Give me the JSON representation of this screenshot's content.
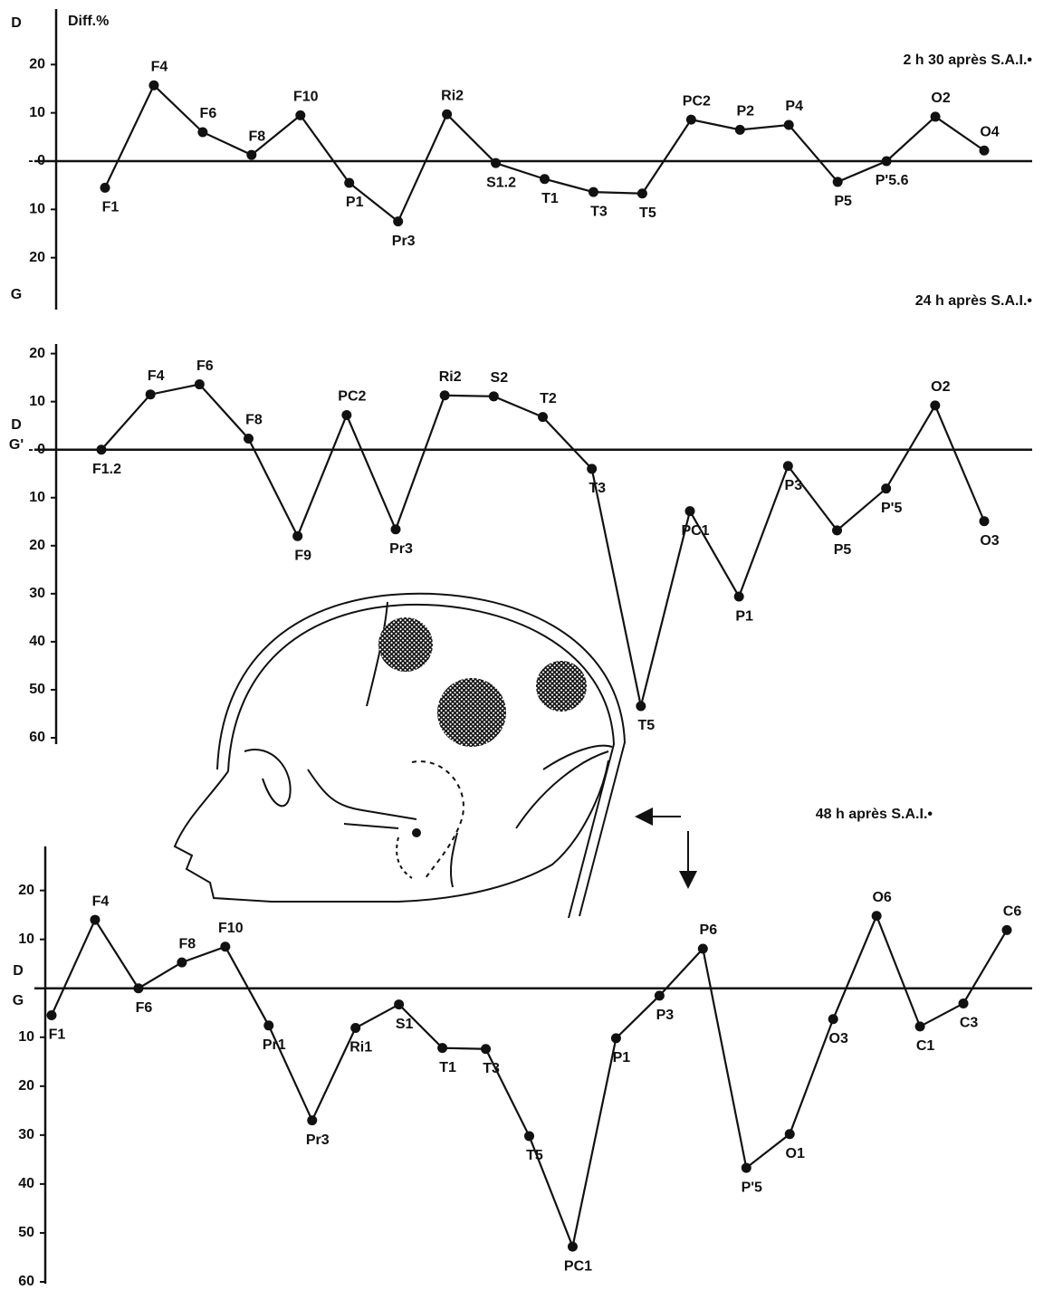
{
  "chart_data": [
    {
      "type": "line",
      "title": "2  h 30 après S.A.I.•",
      "y_label": "Diff.%",
      "upper_label": "D",
      "lower_label": "G",
      "categories": [
        "F1",
        "F4",
        "F6",
        "F8",
        "F10",
        "P1",
        "Pr3",
        "Ri2",
        "S1.2",
        "T1",
        "T3",
        "T5",
        "PC2",
        "P2",
        "P4",
        "P5",
        "P'5.6",
        "O2",
        "O4"
      ],
      "values": [
        -5.5,
        15.7,
        6,
        1.3,
        9.5,
        -4.5,
        -12.5,
        9.7,
        -0.4,
        -3.7,
        -6.4,
        -6.7,
        8.6,
        6.5,
        7.5,
        -4.3,
        0,
        9.2,
        2.2
      ],
      "ylim": [
        -30,
        30
      ],
      "yticks": [
        20,
        10,
        {
          "value": 0,
          "label": "- 0"
        },
        {
          "value": -10,
          "label": "10"
        },
        {
          "value": -20,
          "label": "20"
        }
      ],
      "color": "#111111"
    },
    {
      "type": "line",
      "title": "24 h après S.A.I.•",
      "upper_label": "D",
      "lower_label": "G'",
      "categories": [
        "F1.2",
        "F4",
        "F6",
        "F8",
        "F9",
        "PC2",
        "Pr3",
        "Ri2",
        "S2",
        "T2",
        "T3",
        "T5",
        "PC1",
        "P1",
        "P3",
        "P5",
        "P'5",
        "O2",
        "O3"
      ],
      "values": [
        0,
        11.5,
        13.6,
        2.3,
        -18,
        7.2,
        -16.6,
        11.3,
        11.1,
        6.8,
        -4,
        -53.4,
        -12.8,
        -30.6,
        -3.4,
        -16.8,
        -8.1,
        9.2,
        -14.9
      ],
      "ylim": [
        -60,
        22
      ],
      "yticks": [
        20,
        10,
        {
          "value": 0,
          "label": "- 0"
        },
        {
          "value": -10,
          "label": "10"
        },
        {
          "value": -20,
          "label": "20"
        },
        {
          "value": -30,
          "label": "30"
        },
        {
          "value": -40,
          "label": "40"
        },
        {
          "value": -50,
          "label": "50"
        },
        {
          "value": -60,
          "label": "60"
        }
      ],
      "color": "#111111"
    },
    {
      "type": "line",
      "title": "48 h après S.A.I.•",
      "upper_label": "D",
      "lower_label": "G",
      "categories": [
        "F1",
        "F4",
        "F6",
        "F8",
        "F10",
        "Pr1",
        "Pr3",
        "Ri1",
        "S1",
        "T1",
        "T3",
        "T5",
        "PC1",
        "P1",
        "P3",
        "P6",
        "P'5",
        "O1",
        "O3",
        "O6",
        "C1",
        "C3",
        "C6"
      ],
      "values": [
        -5.5,
        14,
        0,
        5.3,
        8.5,
        -7.6,
        -27,
        -8.1,
        -3.3,
        -12.2,
        -12.4,
        -30.2,
        -52.8,
        -10.2,
        -1.5,
        8.1,
        -36.7,
        -29.8,
        -6.3,
        14.8,
        -7.8,
        -3.1,
        11.9
      ],
      "ylim": [
        -60,
        29
      ],
      "yticks": [
        20,
        10,
        {
          "value": -10,
          "label": "10"
        },
        {
          "value": -20,
          "label": "20"
        },
        {
          "value": -30,
          "label": "30"
        },
        {
          "value": -40,
          "label": "40"
        },
        {
          "value": -50,
          "label": "50"
        },
        {
          "value": -60,
          "label": "60"
        }
      ],
      "color": "#111111"
    }
  ]
}
